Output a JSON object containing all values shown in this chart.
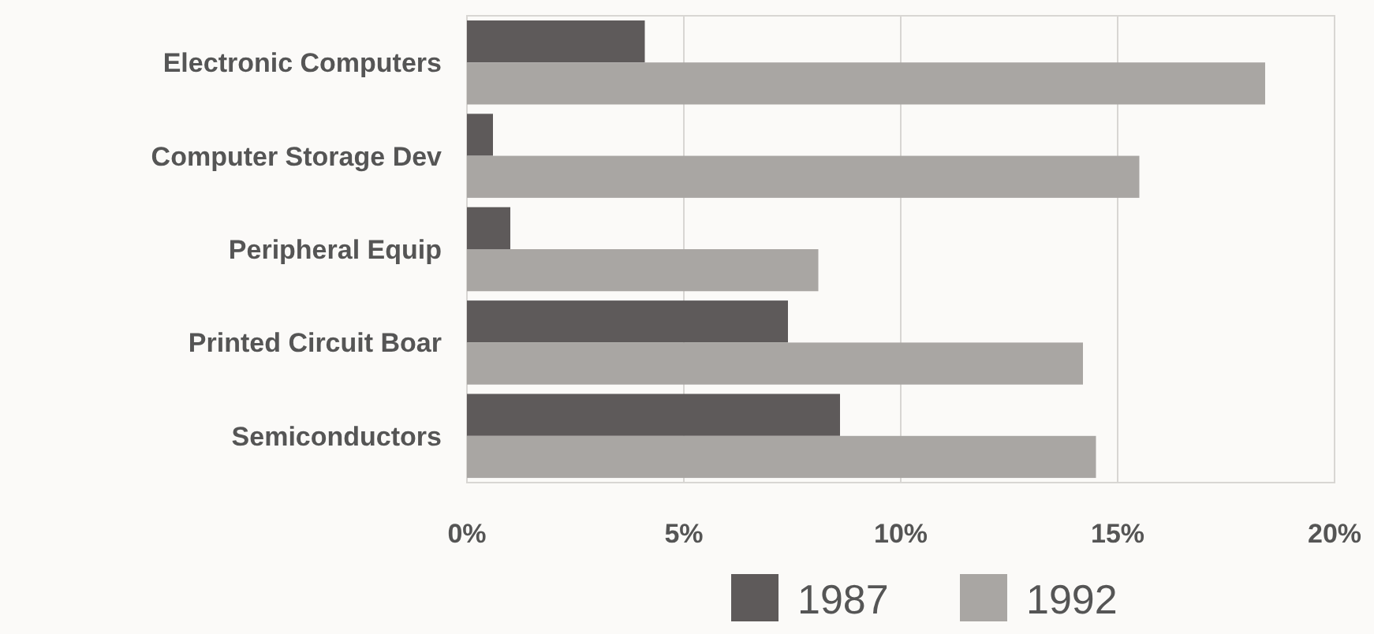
{
  "chart_data": {
    "type": "bar",
    "orientation": "horizontal",
    "categories": [
      "Electronic Computers",
      "Computer Storage Dev",
      "Peripheral Equip",
      "Printed Circuit Boar",
      "Semiconductors"
    ],
    "series": [
      {
        "name": "1987",
        "color": "#5e5a5a",
        "values": [
          4.1,
          0.6,
          1.0,
          7.4,
          8.6
        ]
      },
      {
        "name": "1992",
        "color": "#a9a6a3",
        "values": [
          18.4,
          15.5,
          8.1,
          14.2,
          14.5
        ]
      }
    ],
    "xlim": [
      0,
      20
    ],
    "xticks": [
      {
        "value": 0,
        "label": "0%"
      },
      {
        "value": 5,
        "label": "5%"
      },
      {
        "value": 10,
        "label": "10%"
      },
      {
        "value": 15,
        "label": "15%"
      },
      {
        "value": 20,
        "label": "20%"
      }
    ],
    "grid": "x",
    "legend": "bottom"
  }
}
